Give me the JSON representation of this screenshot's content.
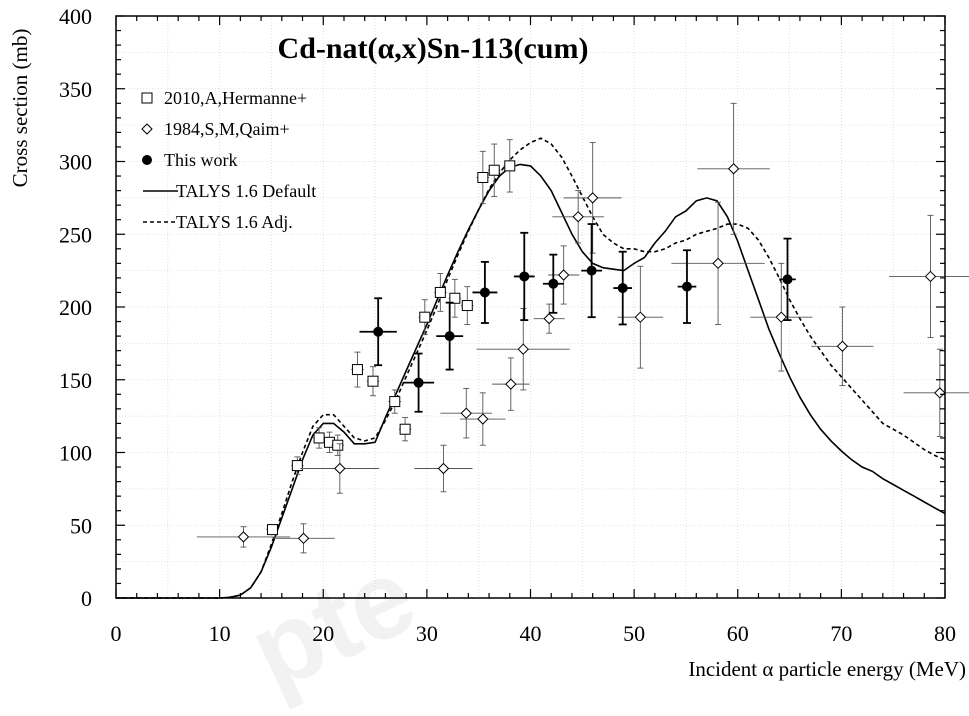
{
  "chart_data": {
    "type": "scatter",
    "title": "Cd-nat(α,x)Sn-113(cum)",
    "xlabel": "Incident α particle energy (MeV)",
    "ylabel": "Cross section (mb)",
    "xlim": [
      0,
      80
    ],
    "ylim": [
      0,
      400
    ],
    "xticks": [
      0,
      10,
      20,
      30,
      40,
      50,
      60,
      70,
      80
    ],
    "yticks": [
      0,
      50,
      100,
      150,
      200,
      250,
      300,
      350,
      400
    ],
    "grid": true,
    "legend_position": "top-left",
    "series": [
      {
        "name": "2010,A,Hermanne+",
        "kind": "points",
        "marker": "open-square",
        "points": [
          {
            "x": 15.1,
            "y": 47,
            "xerr": 0.6,
            "yerr": 3
          },
          {
            "x": 17.5,
            "y": 91,
            "xerr": 0.6,
            "yerr": 6
          },
          {
            "x": 19.6,
            "y": 110,
            "xerr": 0.6,
            "yerr": 7
          },
          {
            "x": 20.6,
            "y": 107,
            "xerr": 0.6,
            "yerr": 7
          },
          {
            "x": 21.4,
            "y": 105,
            "xerr": 0.6,
            "yerr": 7
          },
          {
            "x": 23.3,
            "y": 157,
            "xerr": 0.6,
            "yerr": 12
          },
          {
            "x": 24.8,
            "y": 149,
            "xerr": 0.6,
            "yerr": 10
          },
          {
            "x": 26.9,
            "y": 135,
            "xerr": 0.6,
            "yerr": 8
          },
          {
            "x": 27.9,
            "y": 116,
            "xerr": 0.6,
            "yerr": 8
          },
          {
            "x": 29.8,
            "y": 193,
            "xerr": 0.6,
            "yerr": 12
          },
          {
            "x": 31.3,
            "y": 210,
            "xerr": 0.6,
            "yerr": 13
          },
          {
            "x": 32.7,
            "y": 206,
            "xerr": 0.6,
            "yerr": 13
          },
          {
            "x": 33.9,
            "y": 201,
            "xerr": 0.6,
            "yerr": 13
          },
          {
            "x": 35.4,
            "y": 289,
            "xerr": 0.6,
            "yerr": 18
          },
          {
            "x": 36.5,
            "y": 294,
            "xerr": 0.6,
            "yerr": 18
          },
          {
            "x": 38.0,
            "y": 297,
            "xerr": 0.6,
            "yerr": 18
          }
        ]
      },
      {
        "name": "1984,S,M,Qaim+",
        "kind": "points",
        "marker": "open-diamond",
        "points": [
          {
            "x": 12.3,
            "y": 42,
            "xerr": 4.5,
            "yerr": 7
          },
          {
            "x": 18.1,
            "y": 41,
            "xerr": 3.0,
            "yerr": 10
          },
          {
            "x": 21.6,
            "y": 89,
            "xerr": 3.8,
            "yerr": 17
          },
          {
            "x": 31.6,
            "y": 89,
            "xerr": 2.8,
            "yerr": 16
          },
          {
            "x": 33.8,
            "y": 127,
            "xerr": 2.5,
            "yerr": 17
          },
          {
            "x": 35.4,
            "y": 123,
            "xerr": 2.2,
            "yerr": 18
          },
          {
            "x": 38.1,
            "y": 147,
            "xerr": 1.8,
            "yerr": 18
          },
          {
            "x": 39.3,
            "y": 171,
            "xerr": 4.5,
            "yerr": 28
          },
          {
            "x": 41.8,
            "y": 192,
            "xerr": 1.5,
            "yerr": 10
          },
          {
            "x": 43.2,
            "y": 222,
            "xerr": 1.5,
            "yerr": 20
          },
          {
            "x": 44.6,
            "y": 262,
            "xerr": 2.5,
            "yerr": 18
          },
          {
            "x": 46.0,
            "y": 275,
            "xerr": 2.8,
            "yerr": 38
          },
          {
            "x": 50.6,
            "y": 193,
            "xerr": 2.2,
            "yerr": 35
          },
          {
            "x": 59.6,
            "y": 295,
            "xerr": 3.5,
            "yerr": 45
          },
          {
            "x": 58.1,
            "y": 230,
            "xerr": 4.5,
            "yerr": 42
          },
          {
            "x": 64.2,
            "y": 193,
            "xerr": 3.0,
            "yerr": 37
          },
          {
            "x": 70.1,
            "y": 173,
            "xerr": 3.0,
            "yerr": 27
          },
          {
            "x": 78.6,
            "y": 221,
            "xerr": 4.0,
            "yerr": 42
          },
          {
            "x": 79.5,
            "y": 141,
            "xerr": 3.5,
            "yerr": 30
          }
        ]
      },
      {
        "name": "This work",
        "kind": "points",
        "marker": "filled-circle",
        "points": [
          {
            "x": 25.3,
            "y": 183,
            "xerr": 1.8,
            "yerr": 23
          },
          {
            "x": 29.2,
            "y": 148,
            "xerr": 1.5,
            "yerr": 20
          },
          {
            "x": 32.2,
            "y": 180,
            "xerr": 1.3,
            "yerr": 23
          },
          {
            "x": 35.6,
            "y": 210,
            "xerr": 1.2,
            "yerr": 21
          },
          {
            "x": 39.4,
            "y": 221,
            "xerr": 1.0,
            "yerr": 30
          },
          {
            "x": 42.2,
            "y": 216,
            "xerr": 1.0,
            "yerr": 20
          },
          {
            "x": 45.9,
            "y": 225,
            "xerr": 1.0,
            "yerr": 32
          },
          {
            "x": 48.9,
            "y": 213,
            "xerr": 0.9,
            "yerr": 25
          },
          {
            "x": 55.1,
            "y": 214,
            "xerr": 0.9,
            "yerr": 25
          },
          {
            "x": 64.8,
            "y": 219,
            "xerr": 0.8,
            "yerr": 28
          }
        ]
      },
      {
        "name": "TALYS 1.6 Default",
        "kind": "line",
        "style": "solid",
        "points": [
          [
            0,
            0
          ],
          [
            10,
            0
          ],
          [
            11,
            0.5
          ],
          [
            12,
            2
          ],
          [
            13,
            7
          ],
          [
            14,
            18
          ],
          [
            15,
            35
          ],
          [
            16,
            55
          ],
          [
            17,
            75
          ],
          [
            18,
            95
          ],
          [
            19,
            112
          ],
          [
            20,
            120
          ],
          [
            21,
            120
          ],
          [
            22,
            114
          ],
          [
            23,
            106
          ],
          [
            24,
            106
          ],
          [
            25,
            107
          ],
          [
            26,
            124
          ],
          [
            27,
            140
          ],
          [
            28,
            156
          ],
          [
            29,
            172
          ],
          [
            30,
            188
          ],
          [
            31,
            205
          ],
          [
            32,
            222
          ],
          [
            33,
            238
          ],
          [
            34,
            253
          ],
          [
            35,
            267
          ],
          [
            36,
            280
          ],
          [
            37,
            290
          ],
          [
            38,
            296
          ],
          [
            39,
            298
          ],
          [
            40,
            297
          ],
          [
            41,
            290
          ],
          [
            42,
            280
          ],
          [
            43,
            265
          ],
          [
            44,
            250
          ],
          [
            45,
            238
          ],
          [
            46,
            230
          ],
          [
            47,
            227
          ],
          [
            48,
            226
          ],
          [
            49,
            225
          ],
          [
            50,
            230
          ],
          [
            51,
            234
          ],
          [
            52,
            244
          ],
          [
            53,
            252
          ],
          [
            54,
            262
          ],
          [
            55,
            266
          ],
          [
            56,
            273
          ],
          [
            57,
            275
          ],
          [
            58,
            273
          ],
          [
            59,
            262
          ],
          [
            60,
            245
          ],
          [
            61,
            225
          ],
          [
            62,
            205
          ],
          [
            63,
            185
          ],
          [
            64,
            168
          ],
          [
            65,
            152
          ],
          [
            66,
            138
          ],
          [
            67,
            126
          ],
          [
            68,
            116
          ],
          [
            69,
            108
          ],
          [
            70,
            101
          ],
          [
            71,
            95
          ],
          [
            72,
            90
          ],
          [
            73,
            87
          ],
          [
            74,
            82
          ],
          [
            75,
            78
          ],
          [
            76,
            74
          ],
          [
            77,
            70
          ],
          [
            78,
            66
          ],
          [
            79,
            62
          ],
          [
            80,
            58
          ]
        ]
      },
      {
        "name": "TALYS 1.6 Adj.",
        "kind": "line",
        "style": "dashed",
        "points": [
          [
            0,
            0
          ],
          [
            10,
            0
          ],
          [
            11,
            0.5
          ],
          [
            12,
            2
          ],
          [
            13,
            7
          ],
          [
            14,
            18
          ],
          [
            15,
            37
          ],
          [
            16,
            58
          ],
          [
            17,
            80
          ],
          [
            18,
            100
          ],
          [
            19,
            118
          ],
          [
            20,
            126
          ],
          [
            21,
            126
          ],
          [
            22,
            118
          ],
          [
            23,
            110
          ],
          [
            24,
            108
          ],
          [
            25,
            110
          ],
          [
            26,
            122
          ],
          [
            27,
            136
          ],
          [
            28,
            152
          ],
          [
            29,
            168
          ],
          [
            30,
            184
          ],
          [
            31,
            201
          ],
          [
            32,
            219
          ],
          [
            33,
            236
          ],
          [
            34,
            252
          ],
          [
            35,
            267
          ],
          [
            36,
            281
          ],
          [
            37,
            292
          ],
          [
            38,
            301
          ],
          [
            39,
            308
          ],
          [
            40,
            313
          ],
          [
            41,
            316
          ],
          [
            42,
            312
          ],
          [
            43,
            303
          ],
          [
            44,
            290
          ],
          [
            45,
            276
          ],
          [
            46,
            262
          ],
          [
            47,
            250
          ],
          [
            48,
            244
          ],
          [
            49,
            240
          ],
          [
            50,
            240
          ],
          [
            51,
            238
          ],
          [
            52,
            238
          ],
          [
            53,
            240
          ],
          [
            54,
            244
          ],
          [
            55,
            246
          ],
          [
            56,
            250
          ],
          [
            57,
            252
          ],
          [
            58,
            254
          ],
          [
            59,
            257
          ],
          [
            60,
            257
          ],
          [
            61,
            254
          ],
          [
            62,
            246
          ],
          [
            63,
            234
          ],
          [
            64,
            220
          ],
          [
            65,
            205
          ],
          [
            66,
            192
          ],
          [
            67,
            180
          ],
          [
            68,
            170
          ],
          [
            69,
            160
          ],
          [
            70,
            152
          ],
          [
            71,
            144
          ],
          [
            72,
            136
          ],
          [
            73,
            128
          ],
          [
            74,
            120
          ],
          [
            75,
            116
          ],
          [
            76,
            112
          ],
          [
            77,
            107
          ],
          [
            78,
            102
          ],
          [
            79,
            98
          ],
          [
            80,
            95
          ]
        ]
      }
    ]
  }
}
